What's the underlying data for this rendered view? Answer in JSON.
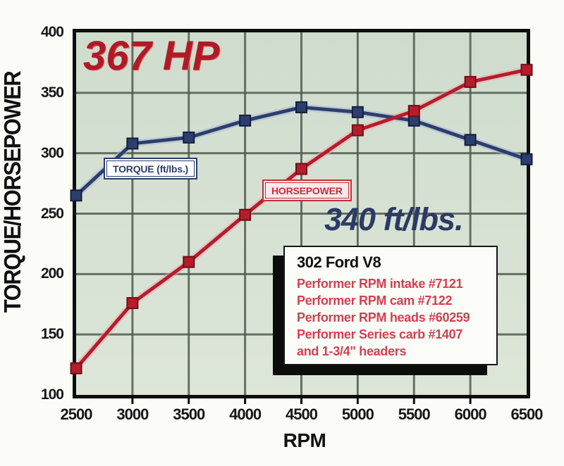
{
  "chart_data": {
    "type": "line",
    "title": "",
    "xlabel": "RPM",
    "ylabel": "TORQUE/HORSEPOWER",
    "x": [
      2500,
      3000,
      3500,
      4000,
      4500,
      5000,
      5500,
      6000,
      6500
    ],
    "x_ticks": [
      2500,
      3000,
      3500,
      4000,
      4500,
      5000,
      5500,
      6000,
      6500
    ],
    "y_ticks": [
      400,
      350,
      300,
      250,
      200,
      150,
      100
    ],
    "xlim": [
      2500,
      6500
    ],
    "ylim": [
      100,
      400
    ],
    "grid": true,
    "legend_position": "inline-boxes",
    "series": [
      {
        "name": "TORQUE (ft/lbs.)",
        "color": "#2c3e6d",
        "marker": "square",
        "values": [
          265,
          308,
          313,
          327,
          338,
          334,
          327,
          311,
          295
        ]
      },
      {
        "name": "HORSEPOWER",
        "color": "#b51d2b",
        "marker": "square",
        "values": [
          122,
          176,
          210,
          249,
          287,
          319,
          335,
          359,
          369
        ]
      }
    ]
  },
  "annotations": {
    "hp_peak": "367 HP",
    "torque_peak": "340 ft/lbs."
  },
  "labels": {
    "torque_box": "TORQUE (ft/lbs.)",
    "horsepower_box": "HORSEPOWER"
  },
  "info_box": {
    "title": "302 Ford V8",
    "lines": [
      "Performer RPM intake #7121",
      "Performer RPM cam #7122",
      "Performer RPM heads #60259",
      "Performer Series carb #1407",
      "and 1-3/4\" headers"
    ]
  },
  "colors": {
    "plot_bg_top": "#cfdccd",
    "plot_bg_bottom": "#dde6d8",
    "grid": "#4f5c50",
    "border": "#0d0d0d",
    "torque_line": "#2c3e6d",
    "torque_marker_stroke": "#141e3c",
    "torque_halo": "#aab6cf",
    "horsepower_line": "#b51d2b",
    "horsepower_marker_stroke": "#6e0f18",
    "horsepower_halo": "#eaa9b1",
    "annotation_red": "#b01a26",
    "annotation_blue": "#2c3a66",
    "info_text_red": "#d2404e"
  }
}
